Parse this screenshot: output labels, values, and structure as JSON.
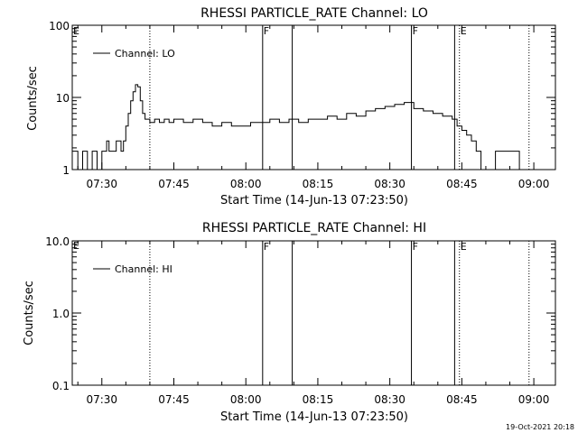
{
  "chart_data": [
    {
      "type": "line",
      "title": "RHESSI PARTICLE_RATE Channel: LO",
      "xlabel": "Start Time (14-Jun-13 07:23:50)",
      "ylabel": "Counts/sec",
      "yscale": "log",
      "ylim": [
        1,
        100
      ],
      "xlim": [
        "07:23:50",
        "09:04:30"
      ],
      "xticks": [
        "07:30",
        "07:45",
        "08:00",
        "08:15",
        "08:30",
        "08:45",
        "09:00"
      ],
      "yticks": [
        "1",
        "10",
        "100"
      ],
      "legend": "top-left",
      "legend_label": "Channel: LO",
      "series": [
        {
          "name": "Channel: LO",
          "x": [
            "07:23:50",
            "07:25:00",
            "07:26:00",
            "07:27:00",
            "07:28:00",
            "07:29:00",
            "07:30:00",
            "07:31:00",
            "07:31:30",
            "07:32:00",
            "07:33:00",
            "07:34:00",
            "07:34:30",
            "07:35:00",
            "07:35:30",
            "07:36:00",
            "07:36:30",
            "07:37:00",
            "07:37:30",
            "07:38:00",
            "07:38:30",
            "07:39:00",
            "07:40:00",
            "07:41:00",
            "07:42:00",
            "07:43:00",
            "07:44:00",
            "07:45:00",
            "07:47:00",
            "07:49:00",
            "07:51:00",
            "07:53:00",
            "07:55:00",
            "07:57:00",
            "07:59:00",
            "08:01:00",
            "08:03:00",
            "08:05:00",
            "08:07:00",
            "08:09:00",
            "08:11:00",
            "08:13:00",
            "08:15:00",
            "08:17:00",
            "08:19:00",
            "08:21:00",
            "08:23:00",
            "08:25:00",
            "08:27:00",
            "08:29:00",
            "08:31:00",
            "08:33:00",
            "08:35:00",
            "08:37:00",
            "08:39:00",
            "08:41:00",
            "08:43:00",
            "08:44:00",
            "08:45:00",
            "08:46:00",
            "08:47:00",
            "08:48:00",
            "08:49:00",
            "08:50:00",
            "08:52:00",
            "08:54:00",
            "08:56:00",
            "08:57:00",
            "08:58:00"
          ],
          "values": [
            1.8,
            1.0,
            1.8,
            1.0,
            1.8,
            1.0,
            1.8,
            2.5,
            1.8,
            1.8,
            2.5,
            1.8,
            2.5,
            4.0,
            6.0,
            9.0,
            12.0,
            15.0,
            14.0,
            9.0,
            6.0,
            5.0,
            4.5,
            5.0,
            4.5,
            5.0,
            4.5,
            5.0,
            4.5,
            5.0,
            4.5,
            4.0,
            4.5,
            4.0,
            4.0,
            4.5,
            4.5,
            5.0,
            4.5,
            5.0,
            4.5,
            5.0,
            5.0,
            5.5,
            5.0,
            6.0,
            5.5,
            6.5,
            7.0,
            7.5,
            8.0,
            8.5,
            7.0,
            6.5,
            6.0,
            5.5,
            5.0,
            4.0,
            3.5,
            3.0,
            2.5,
            1.8,
            1.0,
            1.0,
            1.8,
            1.8,
            1.8,
            1.0,
            1.0
          ]
        }
      ],
      "markers": [
        {
          "time": "07:40:00",
          "style": "dotted",
          "label": ""
        },
        {
          "time": "08:03:30",
          "style": "solid",
          "label": "F"
        },
        {
          "time": "08:09:40",
          "style": "solid",
          "label": ""
        },
        {
          "time": "08:34:30",
          "style": "solid",
          "label": "F"
        },
        {
          "time": "08:43:30",
          "style": "solid",
          "label": ""
        },
        {
          "time": "08:44:30",
          "style": "dotted",
          "label": "E"
        },
        {
          "time": "08:59:00",
          "style": "dotted",
          "label": ""
        }
      ],
      "corner_label": "E"
    },
    {
      "type": "line",
      "title": "RHESSI PARTICLE_RATE Channel: HI",
      "xlabel": "Start Time (14-Jun-13 07:23:50)",
      "ylabel": "Counts/sec",
      "yscale": "log",
      "ylim": [
        0.1,
        10
      ],
      "xlim": [
        "07:23:50",
        "09:04:30"
      ],
      "xticks": [
        "07:30",
        "07:45",
        "08:00",
        "08:15",
        "08:30",
        "08:45",
        "09:00"
      ],
      "yticks": [
        "0.1",
        "1.0",
        "10.0"
      ],
      "legend": "top-left",
      "legend_label": "Channel: HI",
      "series": [
        {
          "name": "Channel: HI",
          "x": [],
          "values": []
        }
      ],
      "markers": [
        {
          "time": "07:40:00",
          "style": "dotted",
          "label": ""
        },
        {
          "time": "08:03:30",
          "style": "solid",
          "label": "F"
        },
        {
          "time": "08:09:40",
          "style": "solid",
          "label": ""
        },
        {
          "time": "08:34:30",
          "style": "solid",
          "label": "F"
        },
        {
          "time": "08:43:30",
          "style": "solid",
          "label": ""
        },
        {
          "time": "08:44:30",
          "style": "dotted",
          "label": "E"
        },
        {
          "time": "08:59:00",
          "style": "dotted",
          "label": ""
        }
      ],
      "corner_label": "E"
    }
  ],
  "footer": {
    "timestamp": "19-Oct-2021 20:18"
  }
}
